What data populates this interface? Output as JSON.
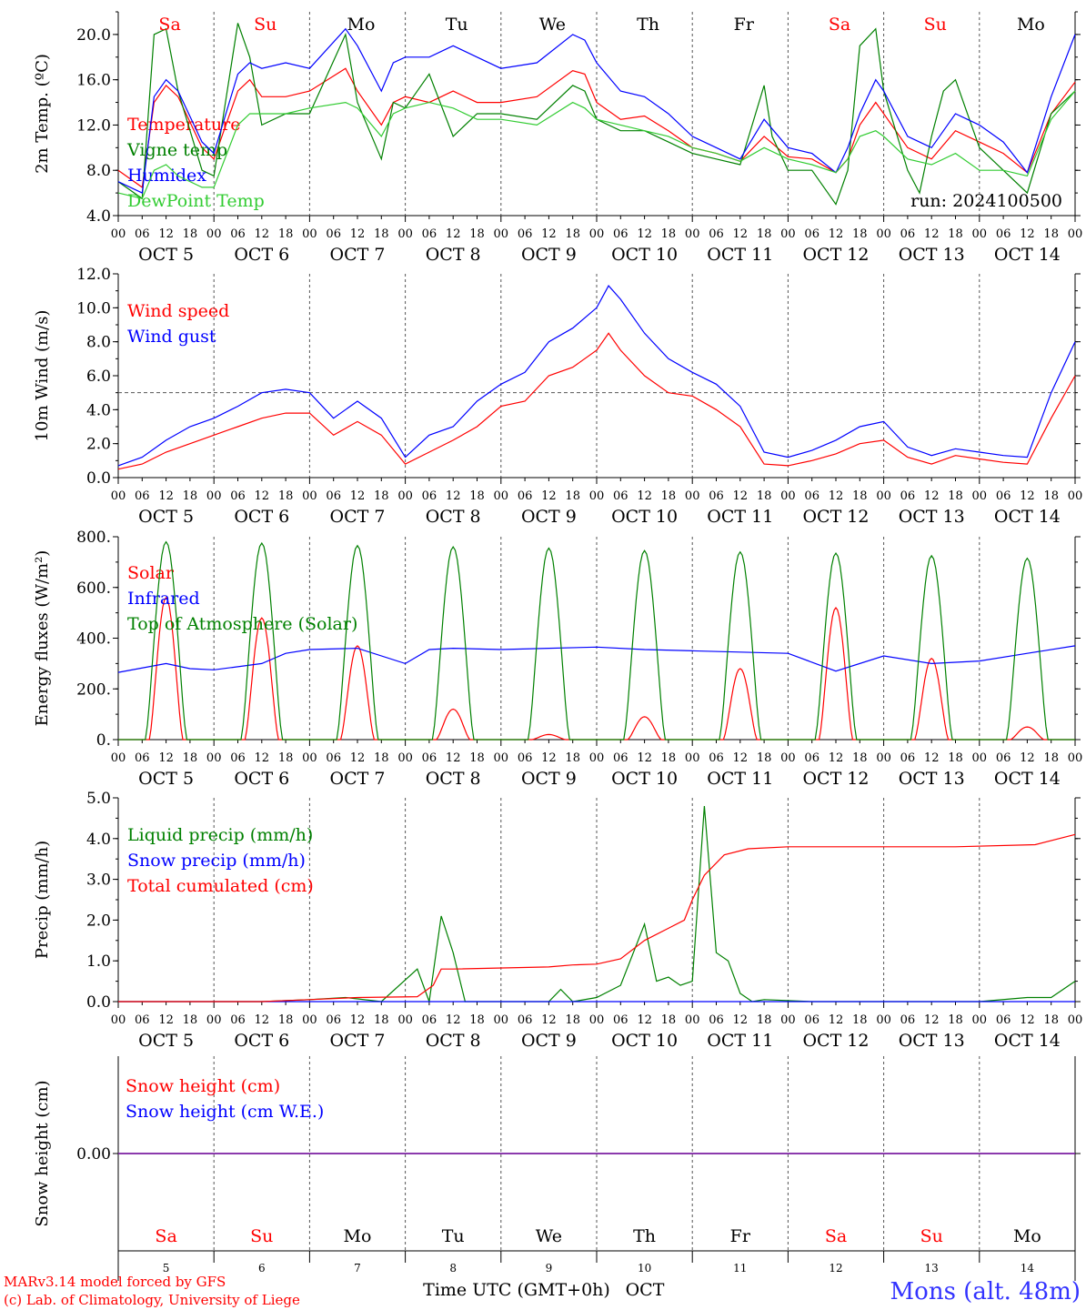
{
  "meta": {
    "run_label": "run: 2024100500",
    "credit_model": "MARv3.14 model forced by GFS",
    "credit_lab": "(c) Lab. of Climatology, University of Liege",
    "location": "Mons (alt. 48m)",
    "xaxis_label": "Time UTC (GMT+0h)",
    "month_label": "OCT"
  },
  "time_axis": {
    "hour_labels": [
      "00",
      "06",
      "12",
      "18"
    ],
    "final_hour_label": "00",
    "day_labels": [
      "OCT  5",
      "OCT  6",
      "OCT  7",
      "OCT  8",
      "OCT  9",
      "OCT 10",
      "OCT 11",
      "OCT 12",
      "OCT 13",
      "OCT 14"
    ],
    "weekdays": [
      "Sa",
      "Su",
      "Mo",
      "Tu",
      "We",
      "Th",
      "Fr",
      "Sa",
      "Su",
      "Mo"
    ],
    "day_numbers": [
      "5",
      "6",
      "7",
      "8",
      "9",
      "10",
      "11",
      "12",
      "13",
      "14"
    ],
    "weekday_colors": [
      "#ff0000",
      "#ff0000",
      "#000000",
      "#000000",
      "#000000",
      "#000000",
      "#000000",
      "#ff0000",
      "#ff0000",
      "#000000"
    ]
  },
  "chart_data": [
    {
      "type": "line",
      "id": "temperature",
      "ylabel": "2m Temp. (ºC)",
      "ylim": [
        4,
        22
      ],
      "yticks": [
        4,
        8,
        12,
        16,
        20
      ],
      "ytick_labels": [
        "4.0",
        "8.0",
        "12.0",
        "16.0",
        "20.0"
      ],
      "x_unit": "hours since OCT 5 00 UTC",
      "series": [
        {
          "name": "Temperature",
          "color": "#ff0000",
          "x": [
            0,
            6,
            9,
            12,
            15,
            21,
            24,
            30,
            33,
            36,
            42,
            48,
            57,
            60,
            66,
            69,
            72,
            78,
            84,
            90,
            96,
            105,
            114,
            117,
            120,
            126,
            132,
            138,
            144,
            150,
            156,
            162,
            168,
            174,
            180,
            183,
            186,
            190,
            192,
            198,
            204,
            210,
            216,
            222,
            228,
            234,
            240
          ],
          "y": [
            8,
            6.5,
            14,
            15.5,
            14.5,
            10,
            9,
            15,
            16,
            14.5,
            14.5,
            15,
            17,
            15,
            12,
            14,
            14.5,
            14,
            15,
            14,
            14,
            14.5,
            16.8,
            16.5,
            14,
            12.5,
            12.8,
            11.5,
            10,
            9.5,
            8.8,
            11,
            9.2,
            9,
            7.8,
            9,
            12,
            14,
            13,
            10,
            9,
            11.5,
            10.5,
            9.5,
            7.8,
            13,
            15.8
          ]
        },
        {
          "name": "Vigne temp",
          "color": "#008000",
          "x": [
            0,
            6,
            9,
            12,
            15,
            21,
            24,
            30,
            33,
            36,
            42,
            48,
            57,
            60,
            66,
            69,
            72,
            78,
            84,
            90,
            96,
            105,
            114,
            117,
            120,
            126,
            132,
            138,
            144,
            150,
            156,
            162,
            164,
            168,
            174,
            180,
            183,
            186,
            190,
            192,
            198,
            201,
            204,
            207,
            210,
            216,
            222,
            228,
            234,
            240
          ],
          "y": [
            7,
            5.5,
            20,
            20.5,
            15,
            8,
            7.5,
            21,
            18,
            12,
            13,
            13,
            20,
            14,
            9,
            14,
            13.5,
            16.5,
            11,
            13,
            13,
            12.5,
            15.5,
            15,
            12.5,
            11.5,
            11.5,
            10.5,
            9.5,
            9,
            8.5,
            15.5,
            11,
            8,
            8,
            5,
            8,
            19,
            20.5,
            15,
            8,
            6,
            11,
            15,
            16,
            10,
            8,
            6,
            13,
            15
          ]
        },
        {
          "name": "Humidex",
          "color": "#0000ff",
          "x": [
            0,
            6,
            9,
            12,
            15,
            21,
            24,
            30,
            33,
            36,
            42,
            48,
            57,
            60,
            66,
            69,
            72,
            78,
            84,
            90,
            96,
            105,
            114,
            117,
            120,
            126,
            132,
            138,
            144,
            150,
            156,
            162,
            168,
            174,
            180,
            183,
            186,
            190,
            192,
            198,
            204,
            210,
            216,
            222,
            228,
            234,
            240
          ],
          "y": [
            7,
            6,
            14.5,
            16,
            15,
            10.5,
            9.5,
            16.5,
            17.5,
            17,
            17.5,
            17,
            20.5,
            19,
            15,
            17.5,
            18,
            18,
            19,
            18,
            17,
            17.5,
            20,
            19.5,
            17.5,
            15,
            14.5,
            13,
            11,
            10,
            9,
            12.5,
            10,
            9.5,
            7.8,
            10,
            13,
            16,
            15,
            11,
            10,
            13,
            12,
            10.5,
            7.8,
            14.5,
            20
          ]
        },
        {
          "name": "DewPoint Temp",
          "color": "#33cc33",
          "x": [
            0,
            6,
            9,
            12,
            15,
            21,
            24,
            30,
            33,
            36,
            42,
            48,
            57,
            60,
            66,
            69,
            72,
            78,
            84,
            90,
            96,
            105,
            114,
            117,
            120,
            126,
            132,
            138,
            144,
            150,
            156,
            162,
            168,
            174,
            180,
            183,
            186,
            190,
            192,
            198,
            204,
            210,
            216,
            222,
            228,
            234,
            240
          ],
          "y": [
            6,
            5.5,
            8,
            8.5,
            7.5,
            6.5,
            6.5,
            12,
            13,
            13,
            13,
            13.5,
            14,
            13.5,
            11,
            13,
            13.5,
            14,
            13.5,
            12.5,
            12.5,
            12,
            14,
            13.5,
            12.5,
            12,
            11.5,
            11,
            10,
            9.5,
            8.8,
            10,
            9,
            8.5,
            7.8,
            9,
            11,
            11.5,
            11,
            9,
            8.5,
            9.5,
            8,
            8,
            7.5,
            12.5,
            15
          ]
        }
      ]
    },
    {
      "type": "line",
      "id": "wind",
      "ylabel": "10m Wind (m/s)",
      "ylim": [
        0,
        12
      ],
      "yticks": [
        0,
        2,
        4,
        6,
        8,
        10,
        12
      ],
      "ytick_labels": [
        "0.0",
        "2.0",
        "4.0",
        "6.0",
        "8.0",
        "10.0",
        "12.0"
      ],
      "reference_line": 5,
      "x_unit": "hours since OCT 5 00 UTC",
      "series": [
        {
          "name": "Wind speed",
          "color": "#ff0000",
          "x": [
            0,
            6,
            12,
            18,
            24,
            30,
            36,
            42,
            48,
            54,
            60,
            66,
            72,
            78,
            84,
            90,
            96,
            102,
            108,
            114,
            120,
            123,
            126,
            132,
            138,
            144,
            150,
            156,
            162,
            168,
            174,
            180,
            186,
            192,
            198,
            204,
            210,
            216,
            222,
            228,
            234,
            240
          ],
          "y": [
            0.5,
            0.8,
            1.5,
            2,
            2.5,
            3,
            3.5,
            3.8,
            3.8,
            2.5,
            3.3,
            2.5,
            0.8,
            1.5,
            2.2,
            3,
            4.2,
            4.5,
            6,
            6.5,
            7.5,
            8.5,
            7.5,
            6,
            5,
            4.8,
            4,
            3,
            0.8,
            0.7,
            1,
            1.4,
            2,
            2.2,
            1.2,
            0.8,
            1.3,
            1.1,
            0.9,
            0.8,
            3.5,
            6
          ]
        },
        {
          "name": "Wind gust",
          "color": "#0000ff",
          "x": [
            0,
            6,
            12,
            18,
            24,
            30,
            36,
            42,
            48,
            54,
            60,
            66,
            72,
            78,
            84,
            90,
            96,
            102,
            108,
            114,
            120,
            123,
            126,
            132,
            138,
            144,
            150,
            156,
            162,
            168,
            174,
            180,
            186,
            192,
            198,
            204,
            210,
            216,
            222,
            228,
            234,
            240
          ],
          "y": [
            0.7,
            1.2,
            2.2,
            3,
            3.5,
            4.2,
            5,
            5.2,
            5,
            3.5,
            4.5,
            3.5,
            1.2,
            2.5,
            3,
            4.5,
            5.5,
            6.2,
            8,
            8.8,
            10,
            11.3,
            10.5,
            8.5,
            7,
            6.2,
            5.5,
            4.2,
            1.5,
            1.2,
            1.6,
            2.2,
            3,
            3.3,
            1.8,
            1.3,
            1.7,
            1.5,
            1.3,
            1.2,
            5,
            8
          ]
        }
      ]
    },
    {
      "type": "line",
      "id": "energy",
      "ylabel": "Energy fluxes (W/m²)",
      "ylim": [
        0,
        800
      ],
      "yticks": [
        0,
        200,
        400,
        600,
        800
      ],
      "ytick_labels": [
        "0.",
        "200.",
        "400.",
        "600.",
        "800."
      ],
      "x_unit": "hours since OCT 5 00 UTC",
      "daily_peaks": {
        "toa_solar": [
          780,
          775,
          765,
          760,
          755,
          745,
          740,
          735,
          725,
          715
        ],
        "solar": [
          560,
          480,
          370,
          120,
          20,
          90,
          280,
          520,
          320,
          50
        ]
      },
      "series": [
        {
          "name": "Solar",
          "color": "#ff0000"
        },
        {
          "name": "Infrared",
          "color": "#0000ff",
          "x": [
            0,
            12,
            18,
            24,
            36,
            42,
            48,
            60,
            72,
            78,
            84,
            96,
            108,
            120,
            132,
            144,
            156,
            168,
            180,
            192,
            204,
            216,
            228,
            240
          ],
          "y": [
            265,
            300,
            280,
            275,
            300,
            340,
            355,
            360,
            300,
            355,
            360,
            355,
            360,
            365,
            355,
            350,
            345,
            340,
            270,
            330,
            300,
            310,
            340,
            370
          ]
        },
        {
          "name": "Top of Atmosphere (Solar)",
          "color": "#008000"
        }
      ]
    },
    {
      "type": "line",
      "id": "precip",
      "ylabel": "Precip (mm/h)",
      "ylim": [
        0,
        5
      ],
      "yticks": [
        0,
        1,
        2,
        3,
        4,
        5
      ],
      "ytick_labels": [
        "0.0",
        "1.0",
        "2.0",
        "3.0",
        "4.0",
        "5.0"
      ],
      "x_unit": "hours since OCT 5 00 UTC",
      "series": [
        {
          "name": "Liquid precip (mm/h)",
          "color": "#008000",
          "x": [
            0,
            36,
            48,
            57,
            66,
            75,
            78,
            81,
            84,
            87,
            90,
            108,
            111,
            114,
            120,
            126,
            132,
            135,
            138,
            141,
            144,
            147,
            150,
            153,
            156,
            159,
            162,
            174,
            216,
            228,
            234,
            240
          ],
          "y": [
            0,
            0,
            0.05,
            0.1,
            0,
            0.8,
            0,
            2.1,
            1.2,
            0,
            0,
            0,
            0.3,
            0,
            0.1,
            0.4,
            1.9,
            0.5,
            0.6,
            0.4,
            0.5,
            4.8,
            1.2,
            1.0,
            0.2,
            0,
            0.05,
            0,
            0,
            0.1,
            0.1,
            0.5
          ]
        },
        {
          "name": "Snow precip (mm/h)",
          "color": "#0000ff",
          "x": [
            0,
            240
          ],
          "y": [
            0,
            0
          ]
        },
        {
          "name": "Total cumulated (cm)",
          "color": "#ff0000",
          "x": [
            0,
            36,
            48,
            60,
            75,
            79,
            81,
            84,
            108,
            114,
            120,
            126,
            132,
            138,
            142,
            144,
            147,
            152,
            158,
            168,
            210,
            230,
            240
          ],
          "y": [
            0,
            0,
            0.05,
            0.1,
            0.12,
            0.4,
            0.8,
            0.8,
            0.85,
            0.9,
            0.92,
            1.05,
            1.5,
            1.8,
            2,
            2.5,
            3.1,
            3.6,
            3.75,
            3.8,
            3.8,
            3.85,
            4.1
          ]
        }
      ]
    },
    {
      "type": "line",
      "id": "snow",
      "ylabel": "Snow height (cm)",
      "ylim": [
        -1,
        1
      ],
      "yticks": [
        0
      ],
      "ytick_labels": [
        "0.00"
      ],
      "x_unit": "hours since OCT 5 00 UTC",
      "series": [
        {
          "name": "Snow height (cm)",
          "color": "#ff0000",
          "x": [
            0,
            240
          ],
          "y": [
            0,
            0
          ]
        },
        {
          "name": "Snow height (cm W.E.)",
          "color": "#0000ff",
          "x": [
            0,
            240
          ],
          "y": [
            0,
            0
          ]
        }
      ]
    }
  ]
}
